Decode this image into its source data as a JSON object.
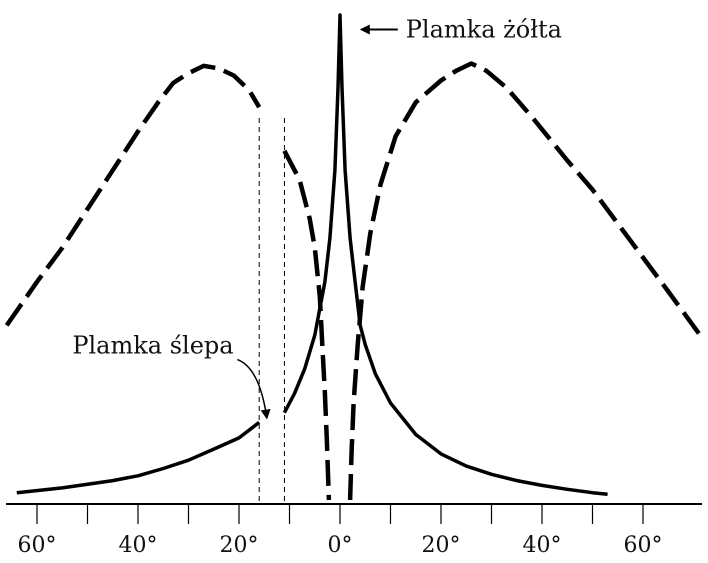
{
  "chart_data": {
    "type": "line",
    "title": "",
    "xlabel": "",
    "ylabel": "",
    "xlim": [
      -66,
      72
    ],
    "ylim": [
      0,
      100
    ],
    "x_ticks": [
      -60,
      -40,
      -20,
      0,
      20,
      40,
      60
    ],
    "x_minor_ticks": [
      -50,
      -30,
      -10,
      10,
      30,
      50
    ],
    "x_tick_labels": [
      "60°",
      "40°",
      "20°",
      "0°",
      "20°",
      "40°",
      "60°"
    ],
    "grid": false,
    "blind_spot": [
      -16,
      -11
    ],
    "series": [
      {
        "style": "solid",
        "color": "#000000",
        "segments": [
          [
            [
              -64,
              1.5
            ],
            [
              -55,
              2.5
            ],
            [
              -45,
              4.0
            ],
            [
              -40,
              5.0
            ],
            [
              -35,
              6.5
            ],
            [
              -30,
              8.2
            ],
            [
              -25,
              10.5
            ],
            [
              -20,
              12.8
            ],
            [
              -16,
              16.0
            ]
          ],
          [
            [
              -11,
              18.0
            ],
            [
              -9,
              22.0
            ],
            [
              -7,
              27.0
            ],
            [
              -5,
              34.0
            ],
            [
              -3,
              45.0
            ],
            [
              -2,
              54.0
            ],
            [
              -1,
              68.0
            ],
            [
              -0.4,
              85.0
            ],
            [
              0,
              100
            ],
            [
              0.4,
              85.0
            ],
            [
              1,
              68.0
            ],
            [
              2,
              54.0
            ],
            [
              3,
              45.0
            ],
            [
              4,
              36.0
            ],
            [
              5,
              32.0
            ],
            [
              7,
              26.0
            ],
            [
              10,
              20.0
            ],
            [
              15,
              13.5
            ],
            [
              20,
              9.5
            ],
            [
              25,
              7.0
            ],
            [
              30,
              5.3
            ],
            [
              35,
              4.0
            ],
            [
              40,
              3.0
            ],
            [
              45,
              2.2
            ],
            [
              50,
              1.5
            ],
            [
              53,
              1.2
            ]
          ]
        ]
      },
      {
        "style": "dashed",
        "color": "#000000",
        "segments": [
          [
            [
              -66,
              36.0
            ],
            [
              -60,
              45.0
            ],
            [
              -55,
              52.0
            ],
            [
              -50,
              60.0
            ],
            [
              -45,
              68.0
            ],
            [
              -40,
              76.0
            ],
            [
              -36,
              82.0
            ],
            [
              -33,
              86.0
            ],
            [
              -30,
              88.0
            ],
            [
              -27,
              89.5
            ],
            [
              -24,
              89.0
            ],
            [
              -21,
              87.5
            ],
            [
              -18,
              84.5
            ],
            [
              -16,
              81.0
            ]
          ],
          [
            [
              -11,
              72.0
            ],
            [
              -8,
              66.0
            ],
            [
              -6,
              58.0
            ],
            [
              -5,
              52.0
            ],
            [
              -4,
              42.0
            ],
            [
              -3.5,
              32.0
            ],
            [
              -3,
              22.0
            ],
            [
              -2.6,
              12.0
            ],
            [
              -2.2,
              0
            ]
          ],
          [
            [
              2,
              0
            ],
            [
              2.3,
              10.0
            ],
            [
              2.7,
              20.0
            ],
            [
              3.5,
              32.0
            ],
            [
              4.5,
              44.0
            ],
            [
              6,
              55.0
            ],
            [
              8,
              65.0
            ],
            [
              11,
              75.0
            ],
            [
              15,
              82.0
            ],
            [
              20,
              86.5
            ],
            [
              23,
              88.5
            ],
            [
              26,
              90.0
            ],
            [
              29,
              88.5
            ],
            [
              33,
              85.0
            ],
            [
              38,
              79.0
            ],
            [
              45,
              70.0
            ],
            [
              50,
              64.0
            ],
            [
              55,
              57.0
            ],
            [
              60,
              50.0
            ],
            [
              65,
              43.0
            ],
            [
              72,
              33.0
            ]
          ]
        ]
      }
    ],
    "annotations": [
      {
        "text": "Plamka żółta",
        "x": 5.5,
        "y": 97.0
      },
      {
        "text": "Plamka ślepa",
        "x": -53.0,
        "y": 30.2
      }
    ]
  }
}
